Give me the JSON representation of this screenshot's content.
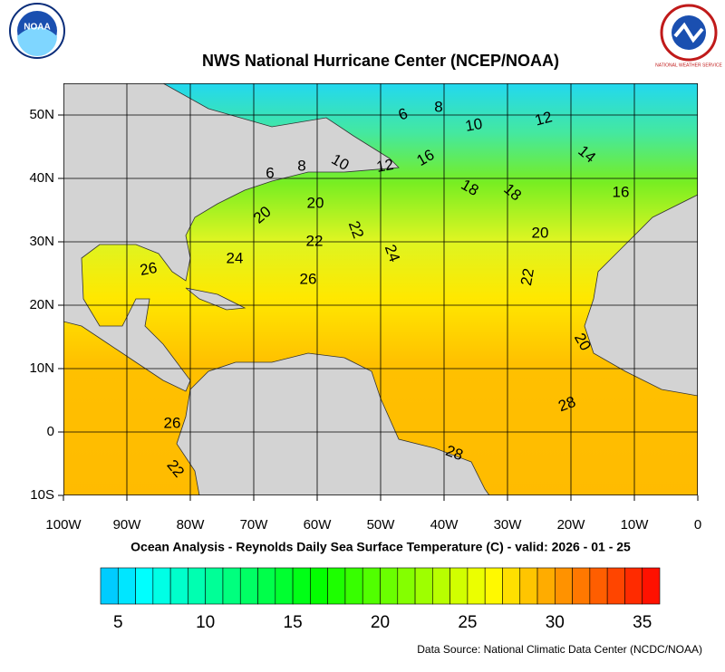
{
  "header": {
    "title": "NWS National Hurricane Center (NCEP/NOAA)",
    "subtitle": "Ocean Analysis - Reynolds Daily Sea Surface Temperature (C) - valid: 2026 - 01 - 25",
    "source": "Data Source: National Climatic Data Center (NCDC/NOAA)"
  },
  "logos": {
    "noaa": "NOAA",
    "nws": "NATIONAL WEATHER SERVICE"
  },
  "map": {
    "lon_ticks": [
      {
        "value": -100,
        "label": "100W"
      },
      {
        "value": -90,
        "label": "90W"
      },
      {
        "value": -80,
        "label": "80W"
      },
      {
        "value": -70,
        "label": "70W"
      },
      {
        "value": -60,
        "label": "60W"
      },
      {
        "value": -50,
        "label": "50W"
      },
      {
        "value": -40,
        "label": "40W"
      },
      {
        "value": -30,
        "label": "30W"
      },
      {
        "value": -20,
        "label": "20W"
      },
      {
        "value": -10,
        "label": "10W"
      },
      0
    ],
    "lat_ticks": [
      {
        "value": -10,
        "label": "10S"
      },
      0,
      {
        "value": 10,
        "label": "10N"
      },
      {
        "value": 20,
        "label": "20N"
      },
      {
        "value": 30,
        "label": "30N"
      },
      {
        "value": 40,
        "label": "40N"
      },
      {
        "value": 50,
        "label": "50N"
      }
    ],
    "contour_labels": [
      "6",
      "8",
      "10",
      "12",
      "14",
      "6",
      "8",
      "10",
      "12",
      "16",
      "18",
      "18",
      "16",
      "20",
      "20",
      "22",
      "22",
      "24",
      "20",
      "24",
      "26",
      "26",
      "22",
      "20",
      "28",
      "26",
      "28",
      "22"
    ]
  },
  "colorbar": {
    "range": [
      4,
      36
    ],
    "ticks": [
      5,
      10,
      15,
      20,
      25,
      30,
      35
    ]
  }
}
